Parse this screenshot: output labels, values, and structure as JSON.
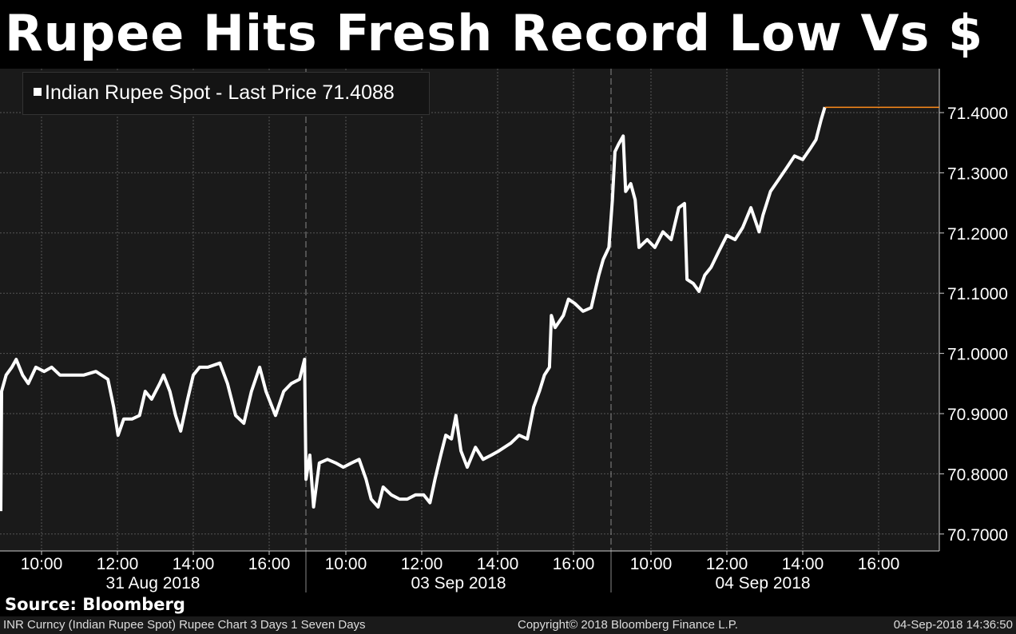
{
  "title": "Rupee Hits Fresh Record Low Vs $",
  "source": "Source: Bloomberg",
  "footer": {
    "left": "INR Curncy (Indian Rupee Spot) Rupee Chart 3 Days 1 Seven Days",
    "center": "Copyright© 2018 Bloomberg Finance L.P.",
    "right": "04-Sep-2018 14:36:50"
  },
  "colors": {
    "background": "#000000",
    "plot_background": "#1a1a1a",
    "line": "#ffffff",
    "last_price_line": "#ff8c1a"
  },
  "chart_data": {
    "type": "line",
    "title": "Rupee Hits Fresh Record Low Vs $",
    "legend": {
      "label": "Indian Rupee Spot - Last Price 71.4088",
      "placement": "top-left"
    },
    "last_price": 71.4088,
    "y_axis": {
      "position": "right",
      "range": [
        70.66,
        71.48
      ],
      "ticks": [
        "70.7000",
        "70.8000",
        "70.9000",
        "71.0000",
        "71.1000",
        "71.2000",
        "71.3000",
        "71.4000"
      ]
    },
    "x_axis": {
      "time_ticks": [
        "10:00",
        "12:00",
        "14:00",
        "16:00"
      ]
    },
    "grid": true,
    "days": [
      {
        "date": "31 Aug 2018",
        "points": [
          [
            "08:54",
            70.738
          ],
          [
            "08:54",
            70.937
          ],
          [
            "09:04",
            70.964
          ],
          [
            "09:13",
            70.977
          ],
          [
            "09:20",
            70.99
          ],
          [
            "09:30",
            70.964
          ],
          [
            "09:39",
            70.95
          ],
          [
            "09:51",
            70.977
          ],
          [
            "10:04",
            70.97
          ],
          [
            "10:16",
            70.977
          ],
          [
            "10:29",
            70.964
          ],
          [
            "10:48",
            70.964
          ],
          [
            "11:07",
            70.964
          ],
          [
            "11:26",
            70.97
          ],
          [
            "11:45",
            70.957
          ],
          [
            "11:54",
            70.911
          ],
          [
            "12:01",
            70.864
          ],
          [
            "12:10",
            70.891
          ],
          [
            "12:23",
            70.891
          ],
          [
            "12:35",
            70.897
          ],
          [
            "12:44",
            70.937
          ],
          [
            "12:54",
            70.924
          ],
          [
            "13:07",
            70.95
          ],
          [
            "13:13",
            70.964
          ],
          [
            "13:23",
            70.937
          ],
          [
            "13:32",
            70.897
          ],
          [
            "13:40",
            70.871
          ],
          [
            "13:51",
            70.924
          ],
          [
            "14:00",
            70.964
          ],
          [
            "14:10",
            70.977
          ],
          [
            "14:23",
            70.977
          ],
          [
            "14:42",
            70.984
          ],
          [
            "14:54",
            70.95
          ],
          [
            "15:07",
            70.897
          ],
          [
            "15:20",
            70.884
          ],
          [
            "15:32",
            70.937
          ],
          [
            "15:45",
            70.977
          ],
          [
            "15:55",
            70.937
          ],
          [
            "16:10",
            70.897
          ],
          [
            "16:23",
            70.937
          ],
          [
            "16:35",
            70.95
          ],
          [
            "16:48",
            70.957
          ],
          [
            "16:56",
            70.99
          ]
        ]
      },
      {
        "date": "03 Sep 2018",
        "points": [
          [
            "08:57",
            70.791
          ],
          [
            "09:03",
            70.831
          ],
          [
            "09:09",
            70.745
          ],
          [
            "09:18",
            70.818
          ],
          [
            "09:31",
            70.824
          ],
          [
            "09:44",
            70.818
          ],
          [
            "09:56",
            70.811
          ],
          [
            "10:09",
            70.818
          ],
          [
            "10:21",
            70.824
          ],
          [
            "10:32",
            70.791
          ],
          [
            "10:40",
            70.758
          ],
          [
            "10:51",
            70.745
          ],
          [
            "10:59",
            70.778
          ],
          [
            "11:12",
            70.765
          ],
          [
            "11:25",
            70.758
          ],
          [
            "11:37",
            70.758
          ],
          [
            "11:50",
            70.765
          ],
          [
            "12:03",
            70.765
          ],
          [
            "12:13",
            70.752
          ],
          [
            "12:21",
            70.791
          ],
          [
            "12:30",
            70.831
          ],
          [
            "12:38",
            70.864
          ],
          [
            "12:47",
            70.858
          ],
          [
            "12:54",
            70.897
          ],
          [
            "13:02",
            70.838
          ],
          [
            "13:12",
            70.811
          ],
          [
            "13:25",
            70.844
          ],
          [
            "13:37",
            70.824
          ],
          [
            "13:50",
            70.831
          ],
          [
            "14:02",
            70.838
          ],
          [
            "14:21",
            70.851
          ],
          [
            "14:34",
            70.864
          ],
          [
            "14:47",
            70.858
          ],
          [
            "14:57",
            70.911
          ],
          [
            "15:06",
            70.937
          ],
          [
            "15:14",
            70.964
          ],
          [
            "15:22",
            70.977
          ],
          [
            "15:25",
            71.063
          ],
          [
            "15:31",
            71.043
          ],
          [
            "15:44",
            71.063
          ],
          [
            "15:52",
            71.09
          ],
          [
            "16:02",
            71.083
          ],
          [
            "16:15",
            71.07
          ],
          [
            "16:28",
            71.076
          ],
          [
            "16:34",
            71.103
          ],
          [
            "16:40",
            71.13
          ],
          [
            "16:47",
            71.156
          ],
          [
            "16:56",
            71.176
          ]
        ]
      },
      {
        "date": "04 Sep 2018",
        "points": [
          [
            "08:59",
            71.255
          ],
          [
            "09:03",
            71.335
          ],
          [
            "09:09",
            71.348
          ],
          [
            "09:16",
            71.361
          ],
          [
            "09:20",
            71.269
          ],
          [
            "09:28",
            71.282
          ],
          [
            "09:35",
            71.255
          ],
          [
            "09:41",
            71.176
          ],
          [
            "09:54",
            71.189
          ],
          [
            "10:06",
            71.176
          ],
          [
            "10:19",
            71.202
          ],
          [
            "10:32",
            71.189
          ],
          [
            "10:44",
            71.242
          ],
          [
            "10:53",
            71.249
          ],
          [
            "10:57",
            71.123
          ],
          [
            "11:07",
            71.116
          ],
          [
            "11:16",
            71.103
          ],
          [
            "11:25",
            71.13
          ],
          [
            "11:35",
            71.143
          ],
          [
            "11:47",
            71.169
          ],
          [
            "12:00",
            71.196
          ],
          [
            "12:13",
            71.189
          ],
          [
            "12:25",
            71.209
          ],
          [
            "12:38",
            71.242
          ],
          [
            "12:51",
            71.202
          ],
          [
            "12:57",
            71.229
          ],
          [
            "13:09",
            71.269
          ],
          [
            "13:22",
            71.289
          ],
          [
            "13:35",
            71.309
          ],
          [
            "13:47",
            71.328
          ],
          [
            "14:00",
            71.322
          ],
          [
            "14:13",
            71.342
          ],
          [
            "14:21",
            71.355
          ],
          [
            "14:29",
            71.388
          ],
          [
            "14:35",
            71.409
          ]
        ]
      }
    ]
  }
}
